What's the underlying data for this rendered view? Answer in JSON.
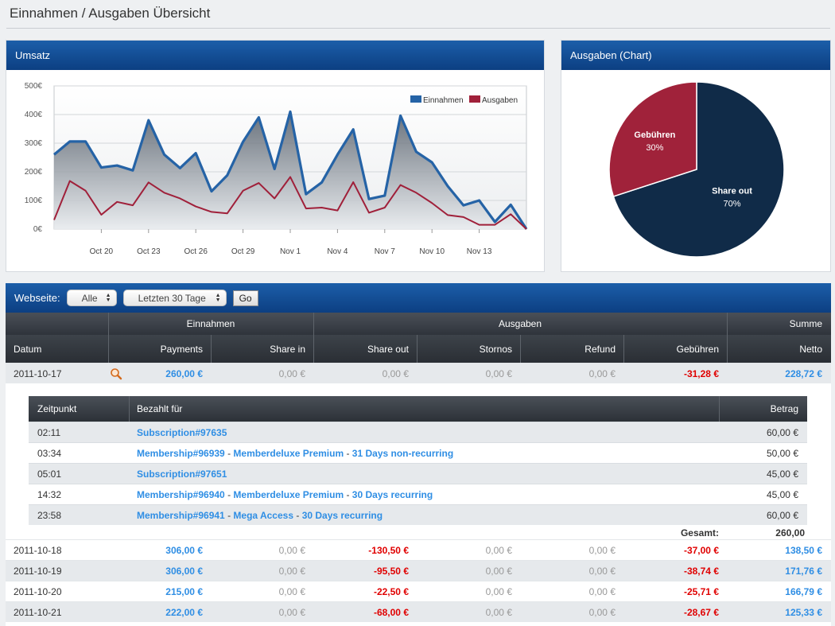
{
  "page": {
    "title": "Einnahmen / Ausgaben Übersicht"
  },
  "umsatz": {
    "title": "Umsatz",
    "colors": {
      "einnahmen": "#2563a6",
      "ausgaben": "#a0203a"
    }
  },
  "chart_data": [
    {
      "type": "line",
      "x": [
        "Oct 17",
        "Oct 18",
        "Oct 19",
        "Oct 20",
        "Oct 21",
        "Oct 22",
        "Oct 23",
        "Oct 24",
        "Oct 25",
        "Oct 26",
        "Oct 27",
        "Oct 28",
        "Oct 29",
        "Oct 30",
        "Oct 31",
        "Nov 1",
        "Nov 2",
        "Nov 3",
        "Nov 4",
        "Nov 5",
        "Nov 6",
        "Nov 7",
        "Nov 8",
        "Nov 9",
        "Nov 10",
        "Nov 11",
        "Nov 12",
        "Nov 13",
        "Nov 14",
        "Nov 15",
        "Nov 16"
      ],
      "series": [
        {
          "name": "Einnahmen",
          "values": [
            260,
            306,
            306,
            215,
            222,
            205,
            380,
            260,
            213,
            265,
            132,
            188,
            305,
            390,
            210,
            410,
            122,
            163,
            260,
            348,
            105,
            117,
            396,
            270,
            233,
            150,
            83,
            100,
            25,
            85,
            0
          ]
        },
        {
          "name": "Ausgaben",
          "values": [
            32,
            168,
            134,
            50,
            95,
            83,
            163,
            127,
            107,
            79,
            60,
            55,
            134,
            161,
            107,
            182,
            72,
            75,
            65,
            164,
            57,
            75,
            154,
            127,
            91,
            49,
            42,
            15,
            15,
            52,
            0
          ]
        }
      ],
      "x_tick_labels": [
        "Oct 20",
        "Oct 23",
        "Oct 26",
        "Oct 29",
        "Nov 1",
        "Nov 4",
        "Nov 7",
        "Nov 10",
        "Nov 13"
      ],
      "y_tick_labels": [
        "0€",
        "100€",
        "200€",
        "300€",
        "400€",
        "500€"
      ],
      "ylim": [
        0,
        500
      ],
      "grid": true,
      "legend": "top-right"
    },
    {
      "type": "pie",
      "title": "Ausgaben (Chart)",
      "slices": [
        {
          "name": "Share out",
          "value": 70,
          "label": "70%",
          "color": "#102b48"
        },
        {
          "name": "Gebühren",
          "value": 30,
          "label": "30%",
          "color": "#a0223a"
        }
      ]
    }
  ],
  "filter": {
    "label": "Webseite:",
    "website": "Alle",
    "range": "Letzten 30 Tage",
    "go": "Go"
  },
  "table": {
    "groups": {
      "einnahmen": "Einnahmen",
      "ausgaben": "Ausgaben",
      "summe": "Summe"
    },
    "columns": [
      "Datum",
      "Payments",
      "Share in",
      "Share out",
      "Stornos",
      "Refund",
      "Gebühren",
      "Netto"
    ],
    "rows": [
      {
        "datum": "2011-10-17",
        "payments": "260,00 €",
        "share_in": "0,00 €",
        "share_out": "0,00 €",
        "stornos": "0,00 €",
        "refund": "0,00 €",
        "gebuehren": "-31,28 €",
        "netto": "228,72 €"
      },
      {
        "datum": "2011-10-18",
        "payments": "306,00 €",
        "share_in": "0,00 €",
        "share_out": "-130,50 €",
        "stornos": "0,00 €",
        "refund": "0,00 €",
        "gebuehren": "-37,00 €",
        "netto": "138,50 €"
      },
      {
        "datum": "2011-10-19",
        "payments": "306,00 €",
        "share_in": "0,00 €",
        "share_out": "-95,50 €",
        "stornos": "0,00 €",
        "refund": "0,00 €",
        "gebuehren": "-38,74 €",
        "netto": "171,76 €"
      },
      {
        "datum": "2011-10-20",
        "payments": "215,00 €",
        "share_in": "0,00 €",
        "share_out": "-22,50 €",
        "stornos": "0,00 €",
        "refund": "0,00 €",
        "gebuehren": "-25,71 €",
        "netto": "166,79 €"
      },
      {
        "datum": "2011-10-21",
        "payments": "222,00 €",
        "share_in": "0,00 €",
        "share_out": "-68,00 €",
        "stornos": "0,00 €",
        "refund": "0,00 €",
        "gebuehren": "-28,67 €",
        "netto": "125,33 €"
      }
    ],
    "detail_icon": "magnifier-icon"
  },
  "detail": {
    "columns": {
      "zeitpunkt": "Zeitpunkt",
      "bezahlt": "Bezahlt für",
      "betrag": "Betrag"
    },
    "items": [
      {
        "zeit": "02:11",
        "a": "Subscription#97635",
        "b": "",
        "c": "",
        "betrag": "60,00 €"
      },
      {
        "zeit": "03:34",
        "a": "Membership#96939",
        "b": "Memberdeluxe Premium",
        "c": "31 Days non-recurring",
        "betrag": "50,00 €"
      },
      {
        "zeit": "05:01",
        "a": "Subscription#97651",
        "b": "",
        "c": "",
        "betrag": "45,00 €"
      },
      {
        "zeit": "14:32",
        "a": "Membership#96940",
        "b": "Memberdeluxe Premium",
        "c": "30 Days recurring",
        "betrag": "45,00 €"
      },
      {
        "zeit": "23:58",
        "a": "Membership#96941",
        "b": "Mega Access",
        "c": "30 Days recurring",
        "betrag": "60,00 €"
      }
    ],
    "separator": " - ",
    "total_label": "Gesamt:",
    "total": "260,00"
  }
}
